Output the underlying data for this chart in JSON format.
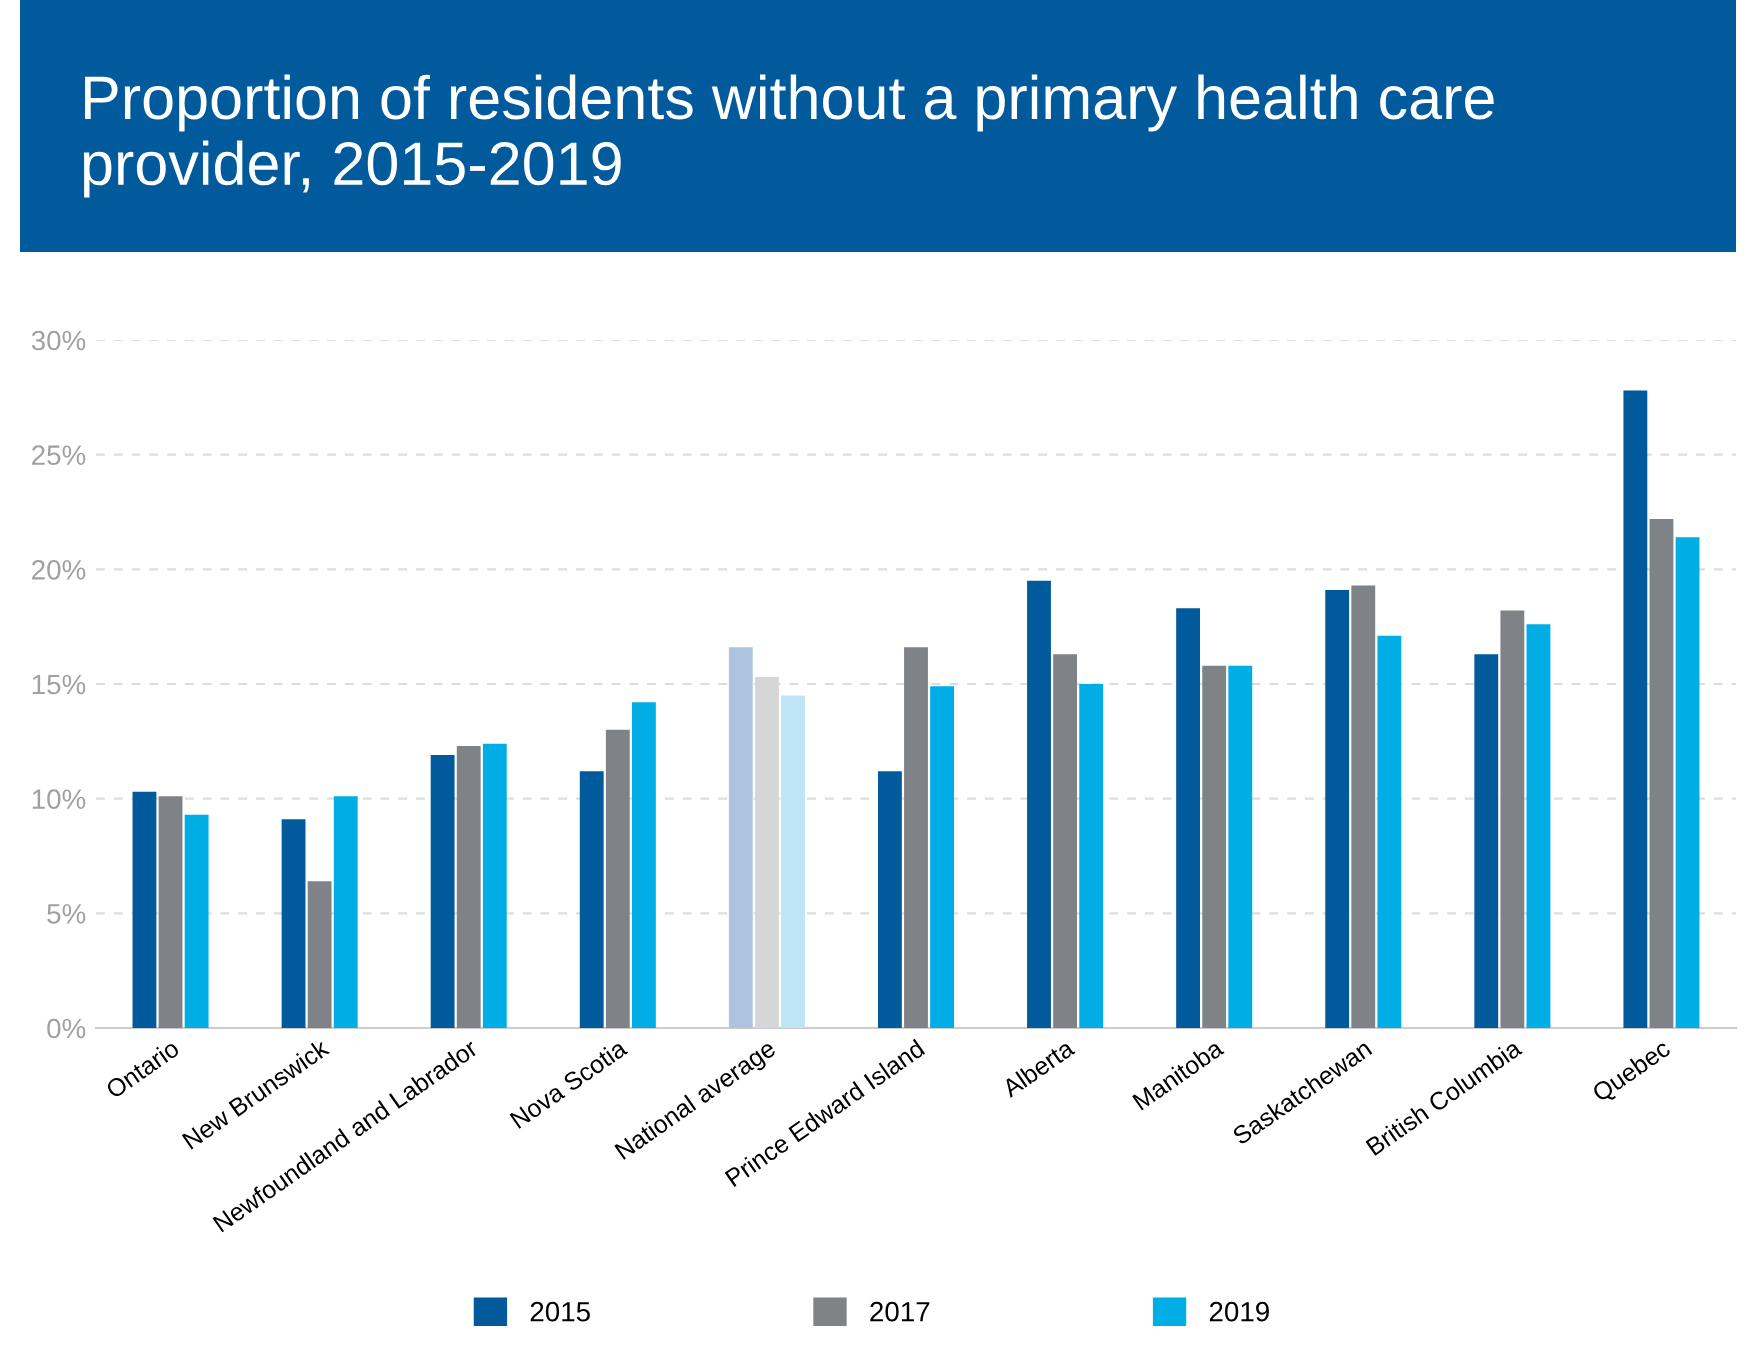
{
  "chart_data": {
    "type": "bar",
    "title": "Proportion of residents without a primary health care provider, 2015-2019",
    "categories": [
      "Ontario",
      "New Brunswick",
      "Newfoundland and Labrador",
      "Nova Scotia",
      "National average",
      "Prince Edward Island",
      "Alberta",
      "Manitoba",
      "Saskatchewan",
      "British Columbia",
      "Quebec"
    ],
    "series": [
      {
        "name": "2015",
        "color": "#005a9c",
        "colors": [
          "#005a9c",
          "#005a9c",
          "#005a9c",
          "#005a9c",
          "#adc4e0",
          "#005a9c",
          "#005a9c",
          "#005a9c",
          "#005a9c",
          "#005a9c",
          "#005a9c"
        ],
        "values": [
          10.3,
          9.1,
          11.9,
          11.2,
          16.6,
          11.2,
          19.5,
          18.3,
          19.1,
          16.3,
          27.8
        ]
      },
      {
        "name": "2017",
        "color": "#7f8287",
        "colors": [
          "#7f8287",
          "#7f8287",
          "#7f8287",
          "#7f8287",
          "#d5d6d8",
          "#7f8287",
          "#7f8287",
          "#7f8287",
          "#7f8287",
          "#7f8287",
          "#7f8287"
        ],
        "values": [
          10.1,
          6.4,
          12.3,
          13.0,
          15.3,
          16.6,
          16.3,
          15.8,
          19.3,
          18.2,
          22.2
        ]
      },
      {
        "name": "2019",
        "color": "#00aee6",
        "colors": [
          "#00aee6",
          "#00aee6",
          "#00aee6",
          "#00aee6",
          "#bfe6f6",
          "#00aee6",
          "#00aee6",
          "#00aee6",
          "#00aee6",
          "#00aee6",
          "#00aee6"
        ],
        "values": [
          9.3,
          10.1,
          12.4,
          14.2,
          14.5,
          14.9,
          15.0,
          15.8,
          17.1,
          17.6,
          21.4
        ]
      }
    ],
    "ylim": [
      0,
      30
    ],
    "yticks": [
      {
        "value": 0,
        "label": "0%"
      },
      {
        "value": 5,
        "label": "5%"
      },
      {
        "value": 10,
        "label": "10%"
      },
      {
        "value": 15,
        "label": "15%"
      },
      {
        "value": 20,
        "label": "20%"
      },
      {
        "value": 25,
        "label": "25%"
      },
      {
        "value": 30,
        "label": "30%"
      }
    ],
    "grid": "y",
    "legend": "bottom"
  }
}
